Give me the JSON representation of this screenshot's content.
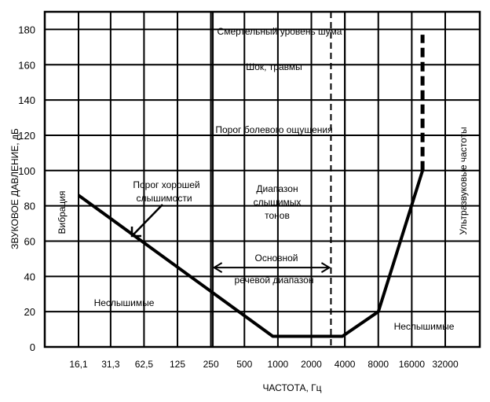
{
  "chart_data": {
    "type": "line",
    "title": "",
    "xlabel": "ЧАСТОТА,   Гц",
    "ylabel": "ЗВУКОВОЕ   ДАВЛЕНИЕ,   дБ",
    "x_scale": "log2",
    "x_ticks": [
      16.1,
      31.3,
      62.5,
      125,
      250,
      500,
      1000,
      2000,
      4000,
      8000,
      16000,
      32000
    ],
    "x_tick_labels": [
      "16,1",
      "31,3",
      "62,5",
      "125",
      "250",
      "500",
      "1000",
      "2000",
      "4000",
      "8000",
      "16000",
      "32000"
    ],
    "ylim": [
      0,
      190
    ],
    "y_ticks": [
      0,
      20,
      40,
      60,
      80,
      100,
      120,
      140,
      160,
      180
    ],
    "grid": true,
    "series": [
      {
        "name": "",
        "style": "solid",
        "points": [
          [
            16.1,
            86
          ],
          [
            900,
            6
          ],
          [
            3800,
            6
          ],
          [
            8000,
            20
          ],
          [
            20000,
            100
          ]
        ]
      },
      {
        "name": "",
        "style": "dashed-thick",
        "points": [
          [
            20000,
            100
          ],
          [
            20000,
            177
          ]
        ]
      }
    ],
    "vlines": [
      {
        "x": 250,
        "style": "solid"
      },
      {
        "x": 260,
        "style": "solid"
      },
      {
        "x": 3000,
        "style": "dashed"
      },
      {
        "x": 4000,
        "style": "solid"
      }
    ],
    "annotations": {
      "death": "Смертельный   уровень   шума",
      "shock": "Шок,   травмы",
      "pain": "Порог      болевого     ощущения",
      "good_hearing_1": "Порог  хорошей",
      "good_hearing_2": "слышимости",
      "range_1": "Диапазон",
      "range_2": "слышимых",
      "range_3": "тонов",
      "speech_1": "Основной",
      "speech_2": "речевой  диапазон",
      "inaudible_left": "Неслышимые",
      "inaudible_right": "Неслышимые",
      "vibration": "Вибрация",
      "ultrasound": "Ультразвуковые      частоты"
    }
  }
}
